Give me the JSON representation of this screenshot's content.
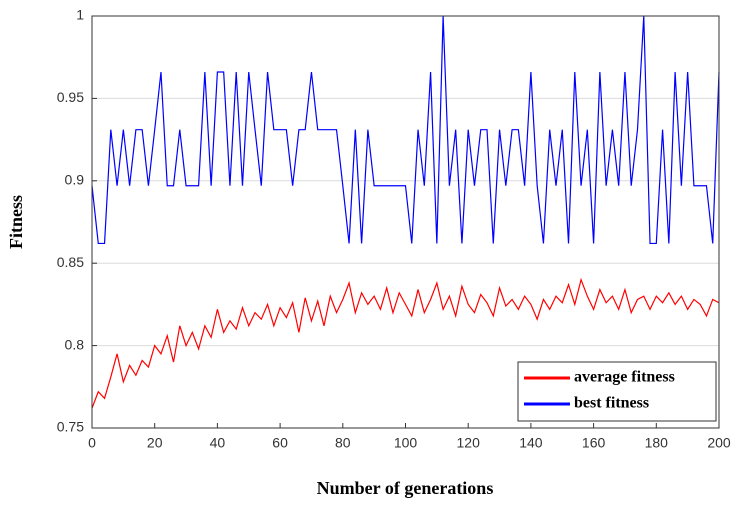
{
  "chart_data": {
    "type": "line",
    "xlabel": "Number of generations",
    "ylabel": "Fitness",
    "x": [
      0,
      2,
      4,
      6,
      8,
      10,
      12,
      14,
      16,
      18,
      20,
      22,
      24,
      26,
      28,
      30,
      32,
      34,
      36,
      38,
      40,
      42,
      44,
      46,
      48,
      50,
      52,
      54,
      56,
      58,
      60,
      62,
      64,
      66,
      68,
      70,
      72,
      74,
      76,
      78,
      80,
      82,
      84,
      86,
      88,
      90,
      92,
      94,
      96,
      98,
      100,
      102,
      104,
      106,
      108,
      110,
      112,
      114,
      116,
      118,
      120,
      122,
      124,
      126,
      128,
      130,
      132,
      134,
      136,
      138,
      140,
      142,
      144,
      146,
      148,
      150,
      152,
      154,
      156,
      158,
      160,
      162,
      164,
      166,
      168,
      170,
      172,
      174,
      176,
      178,
      180,
      182,
      184,
      186,
      188,
      190,
      192,
      194,
      196,
      198,
      200
    ],
    "series": [
      {
        "name": "average fitness",
        "color": "#ff0000",
        "values": [
          0.762,
          0.772,
          0.768,
          0.781,
          0.795,
          0.778,
          0.788,
          0.782,
          0.791,
          0.787,
          0.8,
          0.795,
          0.806,
          0.79,
          0.812,
          0.8,
          0.808,
          0.798,
          0.812,
          0.805,
          0.822,
          0.808,
          0.815,
          0.81,
          0.823,
          0.812,
          0.82,
          0.816,
          0.825,
          0.812,
          0.823,
          0.817,
          0.826,
          0.808,
          0.829,
          0.815,
          0.827,
          0.812,
          0.83,
          0.82,
          0.828,
          0.838,
          0.82,
          0.832,
          0.825,
          0.83,
          0.822,
          0.835,
          0.82,
          0.832,
          0.825,
          0.818,
          0.834,
          0.82,
          0.828,
          0.838,
          0.822,
          0.83,
          0.818,
          0.836,
          0.825,
          0.82,
          0.831,
          0.826,
          0.818,
          0.835,
          0.824,
          0.828,
          0.822,
          0.83,
          0.825,
          0.816,
          0.828,
          0.822,
          0.83,
          0.826,
          0.837,
          0.825,
          0.84,
          0.83,
          0.822,
          0.834,
          0.826,
          0.83,
          0.822,
          0.834,
          0.82,
          0.828,
          0.83,
          0.822,
          0.83,
          0.826,
          0.832,
          0.825,
          0.83,
          0.822,
          0.828,
          0.825,
          0.818,
          0.828,
          0.826
        ]
      },
      {
        "name": "best fitness",
        "color": "#0000ff",
        "values": [
          0.897,
          0.862,
          0.862,
          0.931,
          0.897,
          0.931,
          0.897,
          0.931,
          0.931,
          0.897,
          0.931,
          0.966,
          0.897,
          0.897,
          0.931,
          0.897,
          0.897,
          0.897,
          0.966,
          0.897,
          0.966,
          0.966,
          0.897,
          0.966,
          0.897,
          0.966,
          0.931,
          0.897,
          0.966,
          0.931,
          0.931,
          0.931,
          0.897,
          0.931,
          0.931,
          0.966,
          0.931,
          0.931,
          0.931,
          0.931,
          0.897,
          0.862,
          0.931,
          0.862,
          0.931,
          0.897,
          0.897,
          0.897,
          0.897,
          0.897,
          0.897,
          0.862,
          0.931,
          0.897,
          0.966,
          0.862,
          1,
          0.897,
          0.931,
          0.862,
          0.931,
          0.897,
          0.931,
          0.931,
          0.862,
          0.931,
          0.897,
          0.931,
          0.931,
          0.897,
          0.966,
          0.897,
          0.862,
          0.931,
          0.897,
          0.931,
          0.862,
          0.966,
          0.897,
          0.931,
          0.862,
          0.966,
          0.897,
          0.931,
          0.897,
          0.966,
          0.897,
          0.931,
          1,
          0.862,
          0.862,
          0.931,
          0.862,
          0.966,
          0.897,
          0.966,
          0.897,
          0.897,
          0.897,
          0.862,
          0.966
        ]
      }
    ],
    "xlim": [
      0,
      200
    ],
    "xticks": [
      0,
      20,
      40,
      60,
      80,
      100,
      120,
      140,
      160,
      180,
      200
    ],
    "ylim": [
      0.75,
      1
    ],
    "yticks": [
      0.75,
      0.8,
      0.85,
      0.9,
      0.95,
      1
    ],
    "grid": true,
    "legend": "lower right"
  }
}
